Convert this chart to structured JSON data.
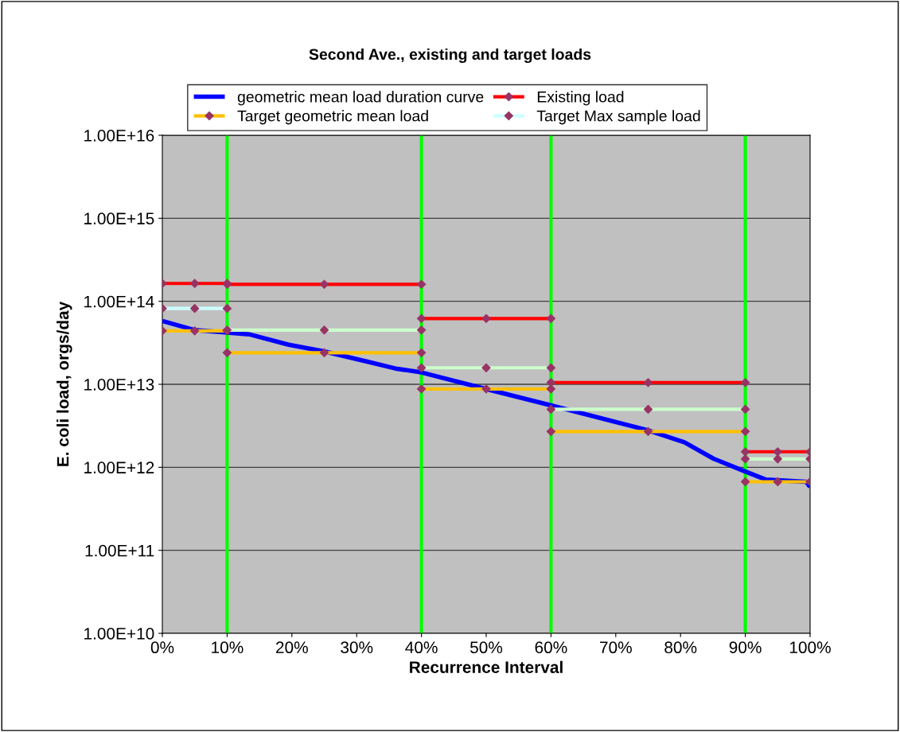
{
  "chart_data": {
    "type": "line",
    "title": "Second Ave., existing and target loads",
    "xlabel": "Recurrence Interval",
    "ylabel": "E. coli load, orgs/day",
    "log": "y",
    "grid": "y",
    "legend": "top",
    "marker": "diamond",
    "line_style": "solid",
    "xlim": [
      0,
      100
    ],
    "xticks": [
      {
        "value": 0,
        "label": "0%"
      },
      {
        "value": 10,
        "label": "10%"
      },
      {
        "value": 20,
        "label": "20%"
      },
      {
        "value": 30,
        "label": "30%"
      },
      {
        "value": 40,
        "label": "40%"
      },
      {
        "value": 50,
        "label": "50%"
      },
      {
        "value": 60,
        "label": "60%"
      },
      {
        "value": 70,
        "label": "70%"
      },
      {
        "value": 80,
        "label": "80%"
      },
      {
        "value": 90,
        "label": "90%"
      },
      {
        "value": 100,
        "label": "100%"
      }
    ],
    "ylim": [
      10000000000.0,
      1e+16
    ],
    "yticks": [
      {
        "value": 10000000000.0,
        "label": "1.00E+10"
      },
      {
        "value": 100000000000.0,
        "label": "1.00E+11"
      },
      {
        "value": 1000000000000.0,
        "label": "1.00E+12"
      },
      {
        "value": 10000000000000.0,
        "label": "1.00E+13"
      },
      {
        "value": 100000000000000.0,
        "label": "1.00E+14"
      },
      {
        "value": 1000000000000000.0,
        "label": "1.00E+15"
      },
      {
        "value": 1e+16,
        "label": "1.00E+16"
      }
    ],
    "ref_lines": [
      {
        "axis": "x",
        "value": 10,
        "color": "#00ff00"
      },
      {
        "axis": "x",
        "value": 40,
        "color": "#00ff00"
      },
      {
        "axis": "x",
        "value": 60,
        "color": "#00ff00"
      },
      {
        "axis": "x",
        "value": 90,
        "color": "#00ff00"
      }
    ],
    "series": [
      {
        "name": "geometric mean load duration curve",
        "color": "#0000ff",
        "marker": "none",
        "x": [
          0,
          5,
          10,
          13.4,
          19.5,
          24.9,
          31,
          36,
          40,
          49.9,
          59.9,
          74.9,
          80.6,
          85.1,
          90,
          93.2,
          99.4,
          100
        ],
        "values": [
          58000000000000.0,
          45000000000000.0,
          42000000000000.0,
          40000000000000.0,
          30000000000000.0,
          25000000000000.0,
          19300000000000.0,
          15500000000000.0,
          13900000000000.0,
          8800000000000.0,
          5600000000000.0,
          2800000000000.0,
          2000000000000.0,
          1270000000000.0,
          890000000000.0,
          710000000000.0,
          670000000000.0,
          580000000000.0
        ]
      },
      {
        "name": "Existing load",
        "color": "#ff0000",
        "x": [
          0,
          5,
          10
        ],
        "values": [
          164000000000000.0,
          164000000000000.0,
          164000000000000.0
        ]
      },
      {
        "name": "Target geometric mean load",
        "color": "#ffc000",
        "x": [
          0,
          5,
          10
        ],
        "values": [
          44000000000000.0,
          44000000000000.0,
          44000000000000.0
        ]
      },
      {
        "name": "Target Max sample load",
        "color": "#ccffff",
        "x": [
          0,
          5,
          10
        ],
        "values": [
          82000000000000.0,
          82000000000000.0,
          82000000000000.0
        ]
      },
      {
        "color": "#ff0000",
        "x": [
          10,
          25,
          40
        ],
        "values": [
          160000000000000.0,
          160000000000000.0,
          160000000000000.0
        ]
      },
      {
        "color": "#ffc000",
        "x": [
          10,
          25,
          40
        ],
        "values": [
          24000000000000.0,
          24000000000000.0,
          24000000000000.0
        ]
      },
      {
        "color": "#ccffcc",
        "x": [
          10,
          25,
          40
        ],
        "values": [
          45000000000000.0,
          45000000000000.0,
          45000000000000.0
        ]
      },
      {
        "color": "#ff0000",
        "x": [
          40,
          50,
          60
        ],
        "values": [
          62000000000000.0,
          62000000000000.0,
          62000000000000.0
        ]
      },
      {
        "color": "#ffc000",
        "x": [
          40,
          50,
          60
        ],
        "values": [
          8800000000000.0,
          8800000000000.0,
          8800000000000.0
        ]
      },
      {
        "color": "#ccffcc",
        "x": [
          40,
          50,
          60
        ],
        "values": [
          15800000000000.0,
          15800000000000.0,
          15800000000000.0
        ]
      },
      {
        "color": "#ff0000",
        "x": [
          60,
          75,
          90
        ],
        "values": [
          10500000000000.0,
          10500000000000.0,
          10500000000000.0
        ]
      },
      {
        "color": "#ffc000",
        "x": [
          60,
          75,
          90
        ],
        "values": [
          2700000000000.0,
          2700000000000.0,
          2700000000000.0
        ]
      },
      {
        "color": "#ccffcc",
        "x": [
          60,
          75,
          90
        ],
        "values": [
          5000000000000.0,
          5000000000000.0,
          5000000000000.0
        ]
      },
      {
        "color": "#ff0000",
        "x": [
          90,
          95,
          100
        ],
        "values": [
          1540000000000.0,
          1540000000000.0,
          1540000000000.0
        ]
      },
      {
        "color": "#ffc000",
        "x": [
          90,
          95,
          100
        ],
        "values": [
          670000000000.0,
          670000000000.0,
          670000000000.0
        ]
      },
      {
        "color": "#ccffcc",
        "x": [
          90,
          95,
          100
        ],
        "values": [
          1260000000000.0,
          1260000000000.0,
          1260000000000.0
        ]
      }
    ]
  }
}
